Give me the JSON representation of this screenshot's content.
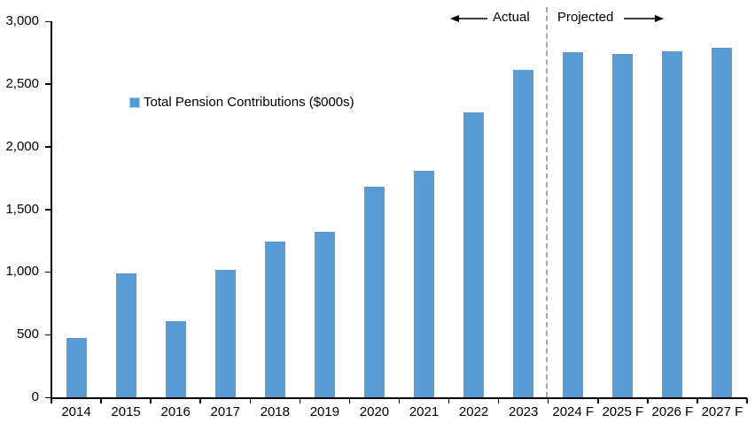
{
  "chart_data": {
    "type": "bar",
    "title": "",
    "legend_label": "Total Pension Contributions ($000s)",
    "categories": [
      "2014",
      "2015",
      "2016",
      "2017",
      "2018",
      "2019",
      "2020",
      "2021",
      "2022",
      "2023",
      "2024 F",
      "2025 F",
      "2026 F",
      "2027 F"
    ],
    "values": [
      470,
      990,
      610,
      1020,
      1240,
      1320,
      1680,
      1810,
      2270,
      2610,
      2750,
      2740,
      2760,
      2790
    ],
    "xlabel": "",
    "ylabel": "",
    "ylim": [
      0,
      3000
    ],
    "ytick_step": 500,
    "ytick_labels": [
      "0",
      "500",
      "1,000",
      "1,500",
      "2,000",
      "2,500",
      "3,000"
    ],
    "grid": false,
    "legend_position": "inside-upper-left",
    "annotations": {
      "actual_label": "Actual",
      "projected_label": "Projected",
      "divider_before_category": "2024 F"
    },
    "colors": {
      "bar": "#5B9BD5",
      "swatch_border": "#A9CCE9",
      "axis": "#000000",
      "text": "#000000",
      "divider": "#A6A6A6",
      "background": "#FFFFFF"
    }
  }
}
